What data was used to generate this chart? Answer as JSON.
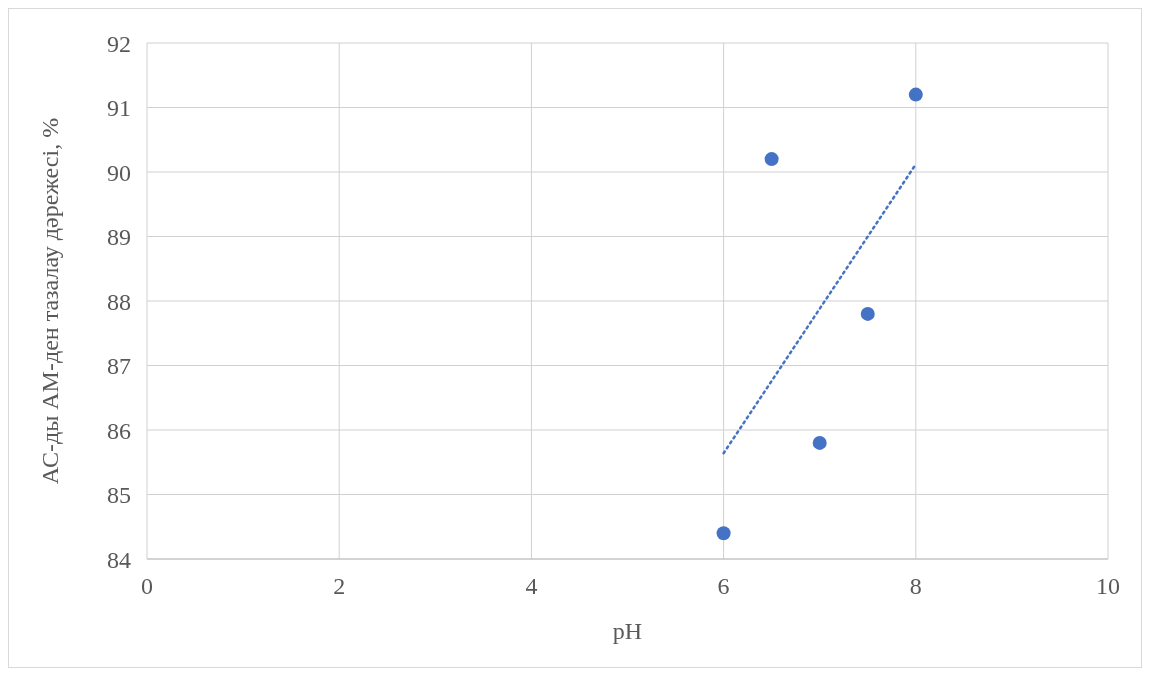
{
  "chart_data": {
    "type": "scatter",
    "xlabel": "pH",
    "ylabel": "АС-ды АМ-ден тазалау дәрежесі, %",
    "x": [
      6,
      6.5,
      7,
      7.5,
      8
    ],
    "series": [
      {
        "color": "#4472c4",
        "marker": "circle",
        "values": [
          84.4,
          90.2,
          85.8,
          87.8,
          91.2
        ]
      },
      {
        "type": "line",
        "color": "#4472c4",
        "x": [
          6,
          8
        ],
        "values": [
          85.64,
          90.12
        ],
        "line_style": "dotted"
      }
    ],
    "xlim": [
      0,
      10
    ],
    "xticks": [
      0,
      2,
      4,
      6,
      8,
      10
    ],
    "ylim": [
      84,
      92
    ],
    "yticks": [
      84,
      85,
      86,
      87,
      88,
      89,
      90,
      91,
      92
    ],
    "grid": true,
    "legend": false
  }
}
